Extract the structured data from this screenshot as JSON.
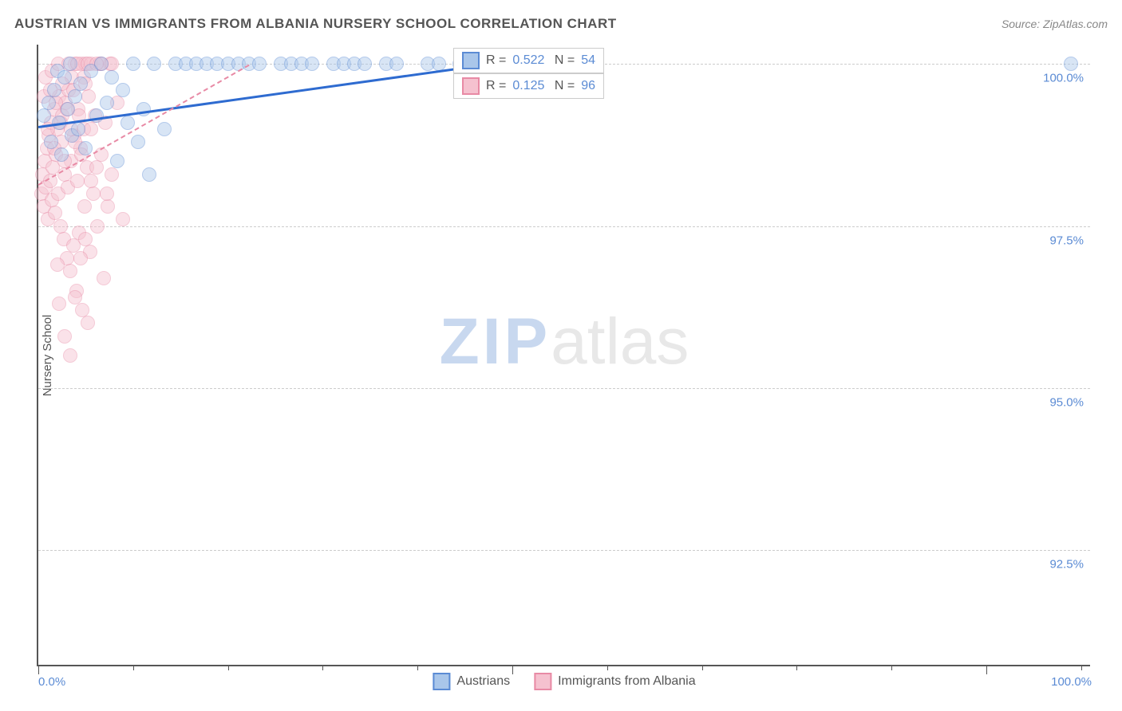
{
  "title": "AUSTRIAN VS IMMIGRANTS FROM ALBANIA NURSERY SCHOOL CORRELATION CHART",
  "source": "Source: ZipAtlas.com",
  "ylabel": "Nursery School",
  "watermark": {
    "bold": "ZIP",
    "light": "atlas"
  },
  "chart": {
    "type": "scatter",
    "xlim": [
      0,
      100
    ],
    "ylim": [
      90.7,
      100.3
    ],
    "yticks": [
      {
        "v": 92.5,
        "label": "92.5%"
      },
      {
        "v": 95.0,
        "label": "95.0%"
      },
      {
        "v": 97.5,
        "label": "97.5%"
      },
      {
        "v": 100.0,
        "label": "100.0%"
      }
    ],
    "xticks_major": [
      0,
      45,
      90
    ],
    "xticks_minor": [
      9,
      18,
      27,
      36,
      54,
      63,
      72,
      81,
      99
    ],
    "xtick_labels": [
      {
        "v": 0,
        "label": "0.0%"
      },
      {
        "v": 100,
        "label": "100.0%"
      }
    ],
    "marker_radius": 9,
    "marker_opacity": 0.45,
    "background_color": "#ffffff",
    "grid_color": "#cccccc",
    "series": [
      {
        "name": "Austrians",
        "fill": "#a9c6ea",
        "stroke": "#5b8bd4",
        "line_color": "#2e6bd0",
        "line_dash": "solid",
        "line_width": 3,
        "R": "0.522",
        "N": "54",
        "trend": {
          "x1": 0,
          "y1": 99.05,
          "x2": 42,
          "y2": 100.0
        },
        "points": [
          [
            0.5,
            99.2
          ],
          [
            1,
            99.4
          ],
          [
            1.2,
            98.8
          ],
          [
            1.5,
            99.6
          ],
          [
            1.8,
            99.9
          ],
          [
            2,
            99.1
          ],
          [
            2.2,
            98.6
          ],
          [
            2.5,
            99.8
          ],
          [
            2.8,
            99.3
          ],
          [
            3,
            100
          ],
          [
            3.2,
            98.9
          ],
          [
            3.5,
            99.5
          ],
          [
            3.8,
            99.0
          ],
          [
            4,
            99.7
          ],
          [
            4.5,
            98.7
          ],
          [
            5,
            99.9
          ],
          [
            5.5,
            99.2
          ],
          [
            6,
            100
          ],
          [
            6.5,
            99.4
          ],
          [
            7,
            99.8
          ],
          [
            7.5,
            98.5
          ],
          [
            8,
            99.6
          ],
          [
            8.5,
            99.1
          ],
          [
            9,
            100
          ],
          [
            9.5,
            98.8
          ],
          [
            10,
            99.3
          ],
          [
            10.5,
            98.3
          ],
          [
            11,
            100
          ],
          [
            12,
            99.0
          ],
          [
            13,
            100
          ],
          [
            14,
            100
          ],
          [
            15,
            100
          ],
          [
            16,
            100
          ],
          [
            17,
            100
          ],
          [
            18,
            100
          ],
          [
            19,
            100
          ],
          [
            20,
            100
          ],
          [
            21,
            100
          ],
          [
            23,
            100
          ],
          [
            24,
            100
          ],
          [
            25,
            100
          ],
          [
            26,
            100
          ],
          [
            28,
            100
          ],
          [
            29,
            100
          ],
          [
            30,
            100
          ],
          [
            31,
            100
          ],
          [
            33,
            100
          ],
          [
            34,
            100
          ],
          [
            37,
            100
          ],
          [
            38,
            100
          ],
          [
            40,
            100
          ],
          [
            41,
            100
          ],
          [
            42,
            100
          ],
          [
            98,
            100
          ]
        ]
      },
      {
        "name": "Immigrants from Albania",
        "fill": "#f5c1cf",
        "stroke": "#e88aa5",
        "line_color": "#e88aa5",
        "line_dash": "dashed",
        "line_width": 2,
        "R": "0.125",
        "N": "96",
        "trend": {
          "x1": 0,
          "y1": 98.15,
          "x2": 20,
          "y2": 100.0
        },
        "points": [
          [
            0.3,
            98.0
          ],
          [
            0.4,
            98.3
          ],
          [
            0.5,
            97.8
          ],
          [
            0.6,
            98.5
          ],
          [
            0.7,
            98.1
          ],
          [
            0.8,
            98.7
          ],
          [
            0.9,
            97.6
          ],
          [
            1.0,
            98.9
          ],
          [
            1.1,
            98.2
          ],
          [
            1.2,
            99.1
          ],
          [
            1.3,
            97.9
          ],
          [
            1.4,
            98.4
          ],
          [
            1.5,
            99.3
          ],
          [
            1.6,
            97.7
          ],
          [
            1.7,
            98.6
          ],
          [
            1.8,
            99.0
          ],
          [
            1.9,
            98.0
          ],
          [
            2.0,
            99.5
          ],
          [
            2.1,
            97.5
          ],
          [
            2.2,
            98.8
          ],
          [
            2.3,
            99.2
          ],
          [
            2.4,
            97.3
          ],
          [
            2.5,
            98.3
          ],
          [
            2.6,
            99.4
          ],
          [
            2.7,
            97.0
          ],
          [
            2.8,
            98.1
          ],
          [
            2.9,
            99.6
          ],
          [
            3.0,
            96.8
          ],
          [
            3.1,
            98.5
          ],
          [
            3.2,
            99.8
          ],
          [
            3.3,
            97.2
          ],
          [
            3.4,
            98.9
          ],
          [
            3.5,
            100
          ],
          [
            3.6,
            96.5
          ],
          [
            3.7,
            98.2
          ],
          [
            3.8,
            99.3
          ],
          [
            3.9,
            97.4
          ],
          [
            4.0,
            98.7
          ],
          [
            4.1,
            100
          ],
          [
            4.2,
            96.2
          ],
          [
            4.3,
            99.0
          ],
          [
            4.4,
            97.8
          ],
          [
            4.5,
            100
          ],
          [
            4.6,
            98.4
          ],
          [
            4.7,
            96.0
          ],
          [
            4.8,
            99.5
          ],
          [
            4.9,
            97.1
          ],
          [
            5.0,
            100
          ],
          [
            5.2,
            98.0
          ],
          [
            5.4,
            99.2
          ],
          [
            5.6,
            97.5
          ],
          [
            5.8,
            100
          ],
          [
            6.0,
            98.6
          ],
          [
            6.2,
            96.7
          ],
          [
            6.4,
            99.1
          ],
          [
            6.6,
            97.8
          ],
          [
            6.8,
            100
          ],
          [
            7.0,
            98.3
          ],
          [
            7.5,
            99.4
          ],
          [
            8.0,
            97.6
          ],
          [
            0.5,
            99.5
          ],
          [
            0.7,
            99.8
          ],
          [
            0.9,
            99.0
          ],
          [
            1.1,
            99.6
          ],
          [
            1.3,
            99.9
          ],
          [
            1.5,
            98.7
          ],
          [
            1.7,
            99.4
          ],
          [
            1.9,
            100
          ],
          [
            2.1,
            99.1
          ],
          [
            2.3,
            99.7
          ],
          [
            2.5,
            98.5
          ],
          [
            2.7,
            99.3
          ],
          [
            2.9,
            100
          ],
          [
            3.1,
            99.0
          ],
          [
            3.3,
            99.6
          ],
          [
            3.5,
            98.8
          ],
          [
            3.7,
            100
          ],
          [
            3.9,
            99.2
          ],
          [
            4.1,
            98.6
          ],
          [
            4.3,
            99.8
          ],
          [
            4.5,
            97.3
          ],
          [
            4.7,
            100
          ],
          [
            5.0,
            99.0
          ],
          [
            5.5,
            98.4
          ],
          [
            6.0,
            100
          ],
          [
            6.5,
            98.0
          ],
          [
            7.0,
            100
          ],
          [
            3.0,
            95.5
          ],
          [
            4.0,
            97.0
          ],
          [
            2.0,
            96.3
          ],
          [
            2.5,
            95.8
          ],
          [
            1.8,
            96.9
          ],
          [
            3.5,
            96.4
          ],
          [
            4.5,
            99.7
          ],
          [
            5.0,
            98.2
          ],
          [
            5.5,
            100
          ]
        ]
      }
    ]
  },
  "bottom_legend": [
    {
      "label": "Austrians",
      "fill": "#a9c6ea",
      "stroke": "#5b8bd4"
    },
    {
      "label": "Immigrants from Albania",
      "fill": "#f5c1cf",
      "stroke": "#e88aa5"
    }
  ]
}
